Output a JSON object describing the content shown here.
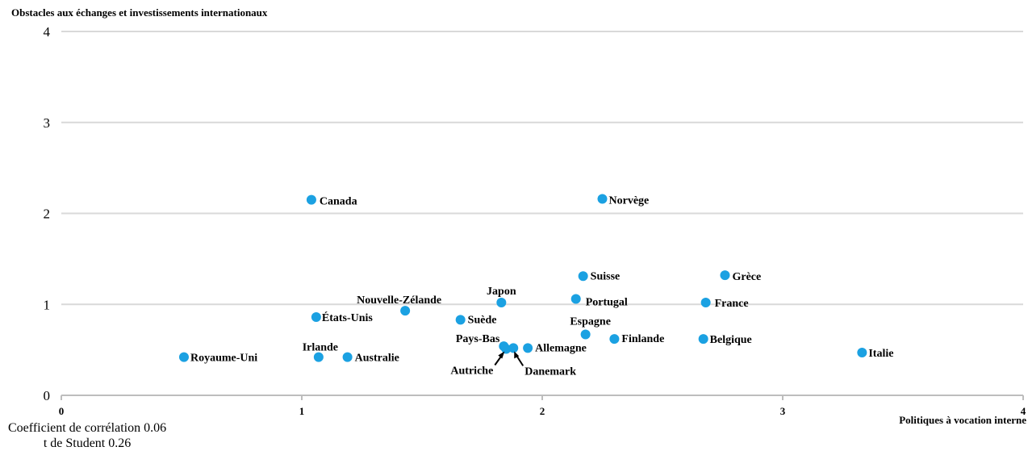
{
  "chart_data": {
    "type": "scatter",
    "ylabel": "Obstacles aux échanges et investissements internationaux",
    "xlabel": "Politiques à vocation interne",
    "xlim": [
      0,
      4
    ],
    "ylim": [
      0,
      4
    ],
    "x_ticks": [
      "0",
      "1",
      "2",
      "3",
      "4"
    ],
    "y_ticks": [
      "0",
      "1",
      "2",
      "3",
      "4"
    ],
    "grid": "horizontal",
    "marker_color": "#1ba1e2",
    "points": [
      {
        "label": "Royaume-Uni",
        "x": 0.51,
        "y": 0.42
      },
      {
        "label": "Irlande",
        "x": 1.07,
        "y": 0.42
      },
      {
        "label": "Australie",
        "x": 1.19,
        "y": 0.42
      },
      {
        "label": "États-Unis",
        "x": 1.06,
        "y": 0.86
      },
      {
        "label": "Canada",
        "x": 1.04,
        "y": 2.15
      },
      {
        "label": "Nouvelle-Zélande",
        "x": 1.43,
        "y": 0.93
      },
      {
        "label": "Suède",
        "x": 1.66,
        "y": 0.83
      },
      {
        "label": "Japon",
        "x": 1.83,
        "y": 1.02
      },
      {
        "label": "Pays-Bas",
        "x": 1.84,
        "y": 0.54
      },
      {
        "label": "Autriche",
        "x": 1.85,
        "y": 0.51
      },
      {
        "label": "Danemark",
        "x": 1.88,
        "y": 0.52
      },
      {
        "label": "Allemagne",
        "x": 1.94,
        "y": 0.52
      },
      {
        "label": "Espagne",
        "x": 2.18,
        "y": 0.67
      },
      {
        "label": "Portugal",
        "x": 2.14,
        "y": 1.06
      },
      {
        "label": "Suisse",
        "x": 2.17,
        "y": 1.31
      },
      {
        "label": "Norvège",
        "x": 2.25,
        "y": 2.16
      },
      {
        "label": "Finlande",
        "x": 2.3,
        "y": 0.62
      },
      {
        "label": "Belgique",
        "x": 2.67,
        "y": 0.62
      },
      {
        "label": "France",
        "x": 2.68,
        "y": 1.02
      },
      {
        "label": "Grèce",
        "x": 2.76,
        "y": 1.32
      },
      {
        "label": "Italie",
        "x": 3.33,
        "y": 0.47
      }
    ]
  },
  "stats": {
    "correlation": "Coefficient de corrélation 0.06",
    "student": "t de Student 0.26"
  }
}
